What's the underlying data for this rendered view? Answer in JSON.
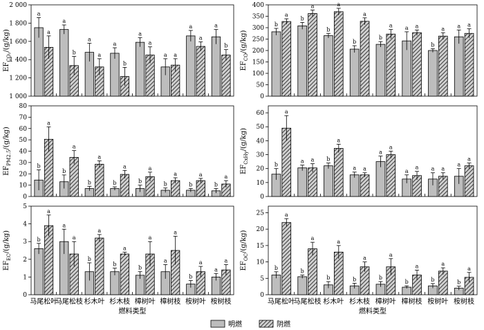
{
  "legend": {
    "bright": "明燃",
    "smolder": "阴燃"
  },
  "chart_data": [
    {
      "type": "bar",
      "ylabel_main": "EF",
      "ylabel_sub": "CO₂",
      "ylabel_rest": "/(g/kg)",
      "ylim": [
        1000,
        2000
      ],
      "yticks": [
        1000,
        1200,
        1400,
        1600,
        1800,
        2000
      ],
      "ytick_labels": [
        "1 000",
        "1 200",
        "1 400",
        "1 600",
        "1 800",
        "2 000"
      ],
      "categories": [
        "马尾松叶",
        "马尾松枝",
        "杉木叶",
        "杉木枝",
        "樟树叶",
        "樟树枝",
        "桉树叶",
        "桉树枝"
      ],
      "show_xlabels": false,
      "xtitle": "",
      "series": [
        {
          "name": "明燃",
          "values": [
            1750,
            1730,
            1480,
            1470,
            1590,
            1320,
            1660,
            1650
          ],
          "errors": [
            110,
            50,
            100,
            60,
            50,
            90,
            60,
            80
          ],
          "sig": [
            "a",
            "a",
            "a",
            "a",
            "a",
            "a",
            "a",
            "a"
          ]
        },
        {
          "name": "阴燃",
          "values": [
            1535,
            1335,
            1320,
            1215,
            1450,
            1340,
            1545,
            1450
          ],
          "errors": [
            125,
            100,
            90,
            100,
            90,
            70,
            50,
            60
          ],
          "sig": [
            "a",
            "b",
            "a",
            "b",
            "a",
            "a",
            "a",
            "b"
          ]
        }
      ]
    },
    {
      "type": "bar",
      "ylabel_main": "EF",
      "ylabel_sub": "CO",
      "ylabel_rest": "/(g/kg)",
      "ylim": [
        0,
        400
      ],
      "yticks": [
        0,
        50,
        100,
        150,
        200,
        250,
        300,
        350,
        400
      ],
      "ytick_labels": [
        "0",
        "50",
        "100",
        "150",
        "200",
        "250",
        "300",
        "350",
        "400"
      ],
      "categories": [
        "马尾松叶",
        "马尾松枝",
        "杉木叶",
        "杉木枝",
        "樟树叶",
        "樟树枝",
        "桉树叶",
        "桉树枝"
      ],
      "show_xlabels": false,
      "xtitle": "",
      "series": [
        {
          "name": "明燃",
          "values": [
            282,
            308,
            265,
            206,
            227,
            242,
            200,
            260
          ],
          "errors": [
            15,
            15,
            10,
            15,
            12,
            40,
            8,
            30
          ],
          "sig": [
            "b",
            "b",
            "b",
            "b",
            "b",
            "a",
            "b",
            "a"
          ]
        },
        {
          "name": "阴燃",
          "values": [
            327,
            362,
            370,
            328,
            272,
            278,
            263,
            275
          ],
          "errors": [
            12,
            15,
            15,
            15,
            20,
            12,
            15,
            20
          ],
          "sig": [
            "a",
            "a",
            "a",
            "a",
            "a",
            "a",
            "a",
            "a"
          ]
        }
      ]
    },
    {
      "type": "bar",
      "ylabel_main": "EF",
      "ylabel_sub": "PM2.5",
      "ylabel_rest": "/(g/kg)",
      "ylim": [
        0,
        80
      ],
      "yticks": [
        0,
        10,
        20,
        30,
        40,
        50,
        60,
        70,
        80
      ],
      "ytick_labels": [
        "0",
        "10",
        "20",
        "30",
        "40",
        "50",
        "60",
        "70",
        "80"
      ],
      "categories": [
        "马尾松叶",
        "马尾松枝",
        "杉木叶",
        "杉木枝",
        "樟树叶",
        "樟树枝",
        "桉树叶",
        "桉树枝"
      ],
      "show_xlabels": false,
      "xtitle": "",
      "series": [
        {
          "name": "明燃",
          "values": [
            14.5,
            13,
            7,
            7,
            7,
            5.5,
            5.5,
            5
          ],
          "errors": [
            9,
            6,
            2,
            1.5,
            3,
            2,
            1.5,
            2
          ],
          "sig": [
            "b",
            "b",
            "b",
            "b",
            "b",
            "b",
            "b",
            "b"
          ]
        },
        {
          "name": "阴燃",
          "values": [
            50.5,
            34.5,
            28.5,
            19.5,
            17.5,
            14,
            14,
            11
          ],
          "errors": [
            11,
            6,
            3,
            3.5,
            4,
            2.5,
            2,
            3
          ],
          "sig": [
            "a",
            "a",
            "a",
            "a",
            "a",
            "a",
            "a",
            "a"
          ]
        }
      ]
    },
    {
      "type": "bar",
      "ylabel_main": "EF",
      "ylabel_sub": "CxHy",
      "ylabel_rest": "/(g/kg)",
      "ylim": [
        0,
        65
      ],
      "yticks": [
        0,
        10,
        20,
        30,
        40,
        50,
        60
      ],
      "ytick_labels": [
        "0",
        "10",
        "20",
        "30",
        "40",
        "50",
        "60"
      ],
      "categories": [
        "马尾松叶",
        "马尾松枝",
        "杉木叶",
        "杉木枝",
        "樟树叶",
        "樟树枝",
        "桉树叶",
        "桉树枝"
      ],
      "show_xlabels": false,
      "xtitle": "",
      "series": [
        {
          "name": "明燃",
          "values": [
            16,
            20.5,
            22,
            15.5,
            25,
            12.5,
            12.5,
            14.5
          ],
          "errors": [
            4,
            2,
            2,
            2,
            4,
            3,
            4.5,
            5.5
          ],
          "sig": [
            "b",
            "a",
            "b",
            "a",
            "a",
            "a",
            "a",
            "a"
          ]
        },
        {
          "name": "阴燃",
          "values": [
            49,
            20.5,
            34.5,
            15.5,
            30,
            15,
            14.5,
            22
          ],
          "errors": [
            9,
            3,
            3,
            1.5,
            2.5,
            3,
            2.5,
            2
          ],
          "sig": [
            "a",
            "a",
            "a",
            "a",
            "a",
            "a",
            "a",
            "a"
          ]
        }
      ]
    },
    {
      "type": "bar",
      "ylabel_main": "EF",
      "ylabel_sub": "EC",
      "ylabel_rest": "/(g/kg)",
      "ylim": [
        0,
        5
      ],
      "yticks": [
        0,
        1,
        2,
        3,
        4,
        5
      ],
      "ytick_labels": [
        "0",
        "1",
        "2",
        "3",
        "4",
        "5"
      ],
      "categories": [
        "马尾松叶",
        "马尾松枝",
        "杉木叶",
        "杉木枝",
        "樟树叶",
        "樟树枝",
        "桉树叶",
        "桉树枝"
      ],
      "show_xlabels": true,
      "xtitle": "燃料类型",
      "series": [
        {
          "name": "明燃",
          "values": [
            2.6,
            3.0,
            1.3,
            1.3,
            1.1,
            1.3,
            0.6,
            1.0
          ],
          "errors": [
            0.3,
            0.7,
            0.5,
            0.2,
            0.2,
            0.4,
            0.2,
            0.2
          ],
          "sig": [
            "b",
            "a",
            "b",
            "b",
            "b",
            "a",
            "b",
            "a"
          ]
        },
        {
          "name": "阴燃",
          "values": [
            3.9,
            2.3,
            3.2,
            2.3,
            2.3,
            2.5,
            1.3,
            1.4
          ],
          "errors": [
            0.6,
            0.7,
            0.2,
            0.1,
            0.7,
            0.8,
            0.3,
            0.3
          ],
          "sig": [
            "a",
            "a",
            "a",
            "a",
            "a",
            "a",
            "a",
            "a"
          ]
        }
      ]
    },
    {
      "type": "bar",
      "ylabel_main": "EF",
      "ylabel_sub": "OC",
      "ylabel_rest": "/(g/kg)",
      "ylim": [
        0,
        27
      ],
      "yticks": [
        0,
        5,
        10,
        15,
        20,
        25
      ],
      "ytick_labels": [
        "0",
        "5",
        "10",
        "15",
        "20",
        "25"
      ],
      "categories": [
        "马尾松叶",
        "马尾松枝",
        "杉木叶",
        "杉木枝",
        "樟树叶",
        "樟树枝",
        "桉树叶",
        "桉树枝"
      ],
      "show_xlabels": true,
      "xtitle": "燃料类型",
      "series": [
        {
          "name": "明燃",
          "values": [
            6.0,
            5.5,
            3.0,
            2.7,
            3.2,
            2.3,
            2.7,
            2.0
          ],
          "errors": [
            1.0,
            0.5,
            1.0,
            0.8,
            0.8,
            0.4,
            0.7,
            0.6
          ],
          "sig": [
            "b",
            "b",
            "b",
            "b",
            "b",
            "b",
            "b",
            "b"
          ]
        },
        {
          "name": "阴燃",
          "values": [
            22.0,
            14.0,
            13.0,
            8.5,
            8.5,
            6.0,
            7.2,
            5.3
          ],
          "errors": [
            1.2,
            2.0,
            2.0,
            1.5,
            2.5,
            1.5,
            1.0,
            1.5
          ],
          "sig": [
            "a",
            "a",
            "a",
            "a",
            "a",
            "a",
            "a",
            "a"
          ]
        }
      ]
    }
  ]
}
